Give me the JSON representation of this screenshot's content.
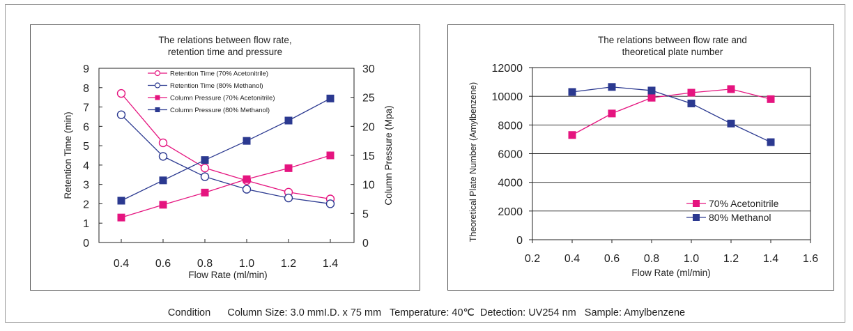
{
  "chart_data": [
    {
      "type": "line",
      "title_lines": [
        "The relations between flow rate,",
        "retention time and pressure"
      ],
      "xlabel": "Flow Rate (ml/min)",
      "ylabel": "Retention Time (min)",
      "y2label": "Column Pressure (Mpa)",
      "xticks": [
        "0.4",
        "0.6",
        "0.8",
        "1.0",
        "1.2",
        "1.4"
      ],
      "x": [
        0.4,
        0.6,
        0.8,
        1.0,
        1.2,
        1.4
      ],
      "xlim": [
        0.4,
        1.4
      ],
      "ylim": [
        0,
        9
      ],
      "y2lim": [
        0,
        30
      ],
      "yticks": [
        "0",
        "1",
        "2",
        "3",
        "4",
        "5",
        "6",
        "7",
        "8",
        "9"
      ],
      "y2ticks": [
        "0",
        "5",
        "10",
        "15",
        "20",
        "25",
        "30"
      ],
      "grid": false,
      "legend_position": "top-center",
      "series": [
        {
          "name": "Retention Time (70% Acetonitrile)",
          "axis": "left",
          "marker": "circle",
          "color": "#e5147f",
          "values": [
            7.7,
            5.15,
            3.85,
            3.2,
            2.6,
            2.25
          ]
        },
        {
          "name": "Retention Time (80% Methanol)",
          "axis": "left",
          "marker": "circle",
          "color": "#2b3990",
          "values": [
            6.6,
            4.45,
            3.4,
            2.75,
            2.3,
            2.0
          ]
        },
        {
          "name": "Column Pressure (70% Acetonitrile)",
          "axis": "right",
          "marker": "square",
          "color": "#e5147f",
          "values": [
            4.3,
            6.5,
            8.6,
            10.9,
            12.8,
            15.0
          ]
        },
        {
          "name": "Column Pressure (80%  Methanol)",
          "axis": "right",
          "marker": "square",
          "color": "#2b3990",
          "values": [
            7.2,
            10.7,
            14.2,
            17.5,
            21.0,
            24.8
          ]
        }
      ]
    },
    {
      "type": "line",
      "title_lines": [
        "The relations between flow rate and",
        "theoretical plate number"
      ],
      "xlabel": "Flow Rate (ml/min)",
      "ylabel": "Theoretical Plate Number (Amylbenzene)",
      "xticks": [
        "0.2",
        "0.4",
        "0.6",
        "0.8",
        "1.0",
        "1.2",
        "1.4",
        "1.6"
      ],
      "xlim": [
        0.2,
        1.6
      ],
      "ylim": [
        0,
        12000
      ],
      "yticks": [
        "0",
        "2000",
        "4000",
        "6000",
        "8000",
        "10000",
        "12000"
      ],
      "grid": true,
      "legend_position": "bottom-right",
      "x": [
        0.4,
        0.6,
        0.8,
        1.0,
        1.2,
        1.4
      ],
      "series": [
        {
          "name": "70% Acetonitrile",
          "marker": "square",
          "color": "#e5147f",
          "values": [
            7300,
            8800,
            9900,
            10250,
            10500,
            9800
          ]
        },
        {
          "name": "80% Methanol",
          "marker": "square",
          "color": "#2b3990",
          "values": [
            10300,
            10650,
            10400,
            9500,
            8100,
            6800
          ]
        }
      ]
    }
  ],
  "footer": {
    "text": "Condition      Column Size: 3.0 mmI.D. x 75 mm   Temperature: 40℃  Detection: UV254 nm   Sample: Amylbenzene"
  }
}
